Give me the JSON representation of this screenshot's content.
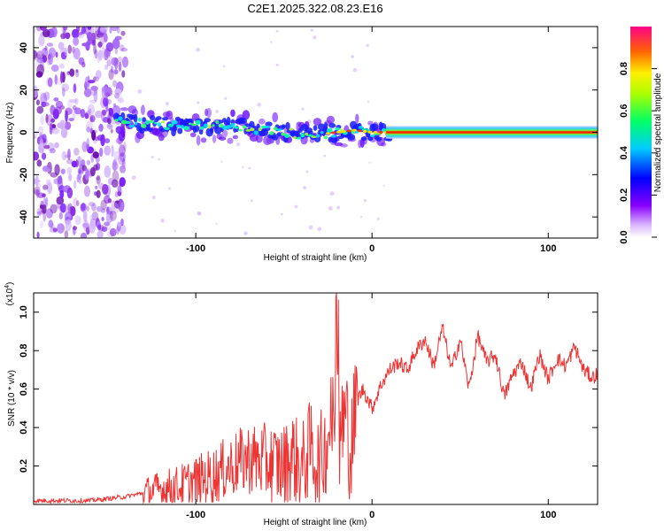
{
  "chart_data": [
    {
      "type": "heatmap",
      "title": "C2E1.2025.322.08.23.E16",
      "xlabel": "Height of straight line (km)",
      "ylabel": "Frequency (Hz)",
      "xlim": [
        -192,
        128
      ],
      "ylim": [
        -50,
        50
      ],
      "xticks": [
        -100,
        0,
        100
      ],
      "xtick_labels": [
        "-100",
        "0",
        "100"
      ],
      "yticks": [
        -40,
        -20,
        0,
        20,
        40
      ],
      "ytick_labels": [
        "-40",
        "-20",
        "0",
        "20",
        "40"
      ],
      "colorbar": {
        "label": "Normalized spectral amplitude",
        "ticks": [
          0.0,
          0.2,
          0.4,
          0.6,
          0.8
        ],
        "tick_labels": [
          "0.0",
          "0.2",
          "0.4",
          "0.6",
          "0.8"
        ],
        "range": [
          0,
          1
        ]
      },
      "ridge": {
        "x": [
          -145,
          -130,
          -110,
          -90,
          -70,
          -60,
          -50,
          -40,
          -30,
          -20,
          -10,
          0,
          10,
          128
        ],
        "freq": [
          5,
          4,
          3,
          3,
          2,
          1,
          0,
          -1,
          -1,
          0,
          1,
          0,
          0,
          0
        ]
      },
      "noise_region_x": [
        -192,
        -140
      ]
    },
    {
      "type": "line",
      "title": "",
      "xlabel": "Height of straight line (km)",
      "ylabel": "SNR (10 * v/v)",
      "y_multiplier_label": "(x10",
      "y_multiplier_exp": "4",
      "y_multiplier_close": ")",
      "xlim": [
        -192,
        128
      ],
      "ylim": [
        0,
        1.1
      ],
      "xticks": [
        -100,
        0,
        100
      ],
      "xtick_labels": [
        "-100",
        "0",
        "100"
      ],
      "yticks": [
        0.2,
        0.4,
        0.6,
        0.8,
        1.0
      ],
      "ytick_labels": [
        "0.2",
        "0.4",
        "0.6",
        "0.8",
        "1.0"
      ],
      "series": [
        {
          "name": "SNR",
          "color": "#ee3333",
          "x": [
            -192,
            -180,
            -160,
            -150,
            -140,
            -130,
            -120,
            -110,
            -100,
            -90,
            -80,
            -70,
            -60,
            -50,
            -45,
            -40,
            -35,
            -30,
            -25,
            -20,
            -18,
            -15,
            -12,
            -10,
            -8,
            -5,
            0,
            5,
            10,
            15,
            20,
            25,
            30,
            35,
            40,
            45,
            50,
            55,
            60,
            65,
            70,
            75,
            80,
            85,
            90,
            95,
            100,
            105,
            110,
            115,
            120,
            125,
            128
          ],
          "y": [
            0.02,
            0.02,
            0.02,
            0.03,
            0.04,
            0.06,
            0.08,
            0.09,
            0.12,
            0.15,
            0.2,
            0.24,
            0.22,
            0.2,
            0.26,
            0.18,
            0.3,
            0.2,
            0.35,
            0.55,
            0.3,
            0.5,
            0.25,
            0.45,
            0.55,
            0.6,
            0.5,
            0.62,
            0.7,
            0.74,
            0.7,
            0.8,
            0.86,
            0.72,
            0.92,
            0.7,
            0.86,
            0.6,
            0.88,
            0.74,
            0.78,
            0.56,
            0.68,
            0.74,
            0.6,
            0.78,
            0.65,
            0.76,
            0.72,
            0.82,
            0.7,
            0.66,
            0.68
          ]
        }
      ]
    }
  ]
}
